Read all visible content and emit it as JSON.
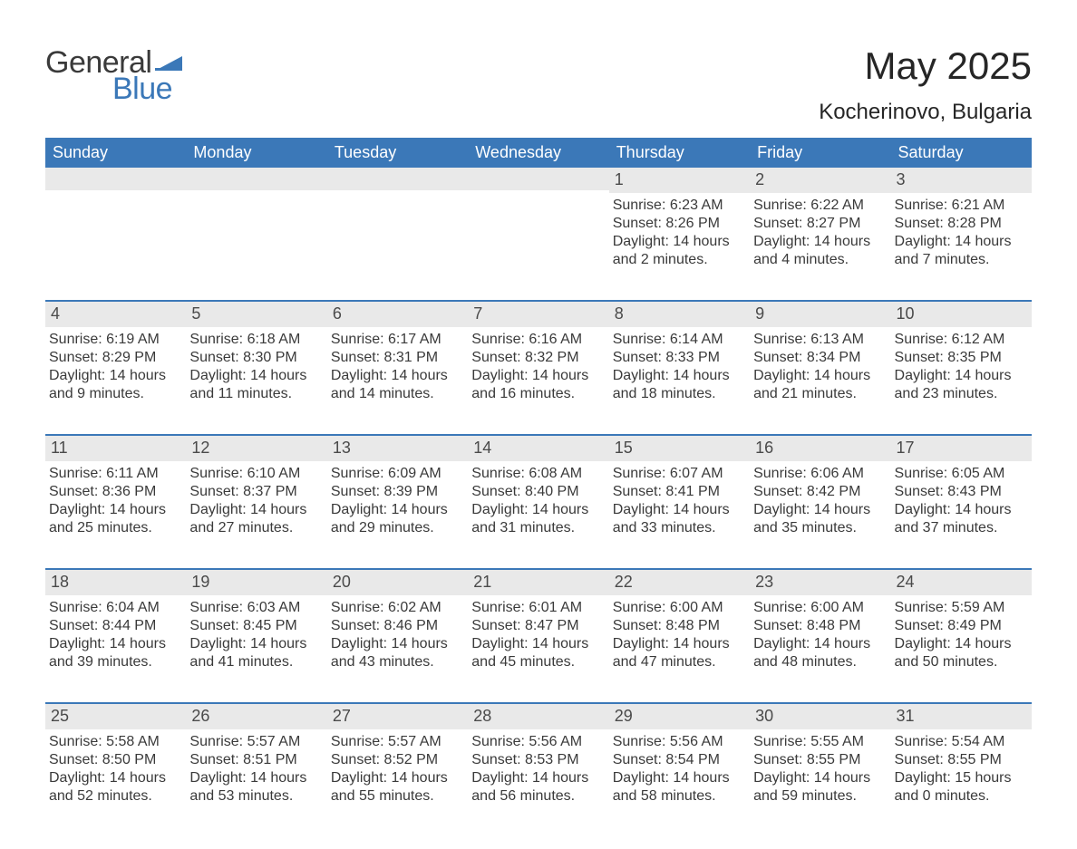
{
  "logo": {
    "text1": "General",
    "text2": "Blue",
    "triangle_color": "#3b78b8",
    "general_color": "#3a3a3a",
    "blue_color": "#3b78b8"
  },
  "header": {
    "month_title": "May 2025",
    "location": "Kocherinovo, Bulgaria"
  },
  "colors": {
    "header_bg": "#3b78b8",
    "header_text": "#ffffff",
    "daynum_bg": "#e9e9e9",
    "daynum_text": "#4a4a4a",
    "body_text": "#3a3a3a",
    "week_divider": "#3b78b8",
    "page_bg": "#ffffff"
  },
  "typography": {
    "month_title_fontsize": 42,
    "location_fontsize": 24,
    "day_header_fontsize": 18,
    "daynum_fontsize": 18,
    "cell_body_fontsize": 16,
    "font_family": "Arial"
  },
  "day_headers": [
    "Sunday",
    "Monday",
    "Tuesday",
    "Wednesday",
    "Thursday",
    "Friday",
    "Saturday"
  ],
  "weeks": [
    [
      {
        "blank": true
      },
      {
        "blank": true
      },
      {
        "blank": true
      },
      {
        "blank": true
      },
      {
        "day": "1",
        "sunrise": "6:23 AM",
        "sunset": "8:26 PM",
        "daylight": "14 hours and 2 minutes."
      },
      {
        "day": "2",
        "sunrise": "6:22 AM",
        "sunset": "8:27 PM",
        "daylight": "14 hours and 4 minutes."
      },
      {
        "day": "3",
        "sunrise": "6:21 AM",
        "sunset": "8:28 PM",
        "daylight": "14 hours and 7 minutes."
      }
    ],
    [
      {
        "day": "4",
        "sunrise": "6:19 AM",
        "sunset": "8:29 PM",
        "daylight": "14 hours and 9 minutes."
      },
      {
        "day": "5",
        "sunrise": "6:18 AM",
        "sunset": "8:30 PM",
        "daylight": "14 hours and 11 minutes."
      },
      {
        "day": "6",
        "sunrise": "6:17 AM",
        "sunset": "8:31 PM",
        "daylight": "14 hours and 14 minutes."
      },
      {
        "day": "7",
        "sunrise": "6:16 AM",
        "sunset": "8:32 PM",
        "daylight": "14 hours and 16 minutes."
      },
      {
        "day": "8",
        "sunrise": "6:14 AM",
        "sunset": "8:33 PM",
        "daylight": "14 hours and 18 minutes."
      },
      {
        "day": "9",
        "sunrise": "6:13 AM",
        "sunset": "8:34 PM",
        "daylight": "14 hours and 21 minutes."
      },
      {
        "day": "10",
        "sunrise": "6:12 AM",
        "sunset": "8:35 PM",
        "daylight": "14 hours and 23 minutes."
      }
    ],
    [
      {
        "day": "11",
        "sunrise": "6:11 AM",
        "sunset": "8:36 PM",
        "daylight": "14 hours and 25 minutes."
      },
      {
        "day": "12",
        "sunrise": "6:10 AM",
        "sunset": "8:37 PM",
        "daylight": "14 hours and 27 minutes."
      },
      {
        "day": "13",
        "sunrise": "6:09 AM",
        "sunset": "8:39 PM",
        "daylight": "14 hours and 29 minutes."
      },
      {
        "day": "14",
        "sunrise": "6:08 AM",
        "sunset": "8:40 PM",
        "daylight": "14 hours and 31 minutes."
      },
      {
        "day": "15",
        "sunrise": "6:07 AM",
        "sunset": "8:41 PM",
        "daylight": "14 hours and 33 minutes."
      },
      {
        "day": "16",
        "sunrise": "6:06 AM",
        "sunset": "8:42 PM",
        "daylight": "14 hours and 35 minutes."
      },
      {
        "day": "17",
        "sunrise": "6:05 AM",
        "sunset": "8:43 PM",
        "daylight": "14 hours and 37 minutes."
      }
    ],
    [
      {
        "day": "18",
        "sunrise": "6:04 AM",
        "sunset": "8:44 PM",
        "daylight": "14 hours and 39 minutes."
      },
      {
        "day": "19",
        "sunrise": "6:03 AM",
        "sunset": "8:45 PM",
        "daylight": "14 hours and 41 minutes."
      },
      {
        "day": "20",
        "sunrise": "6:02 AM",
        "sunset": "8:46 PM",
        "daylight": "14 hours and 43 minutes."
      },
      {
        "day": "21",
        "sunrise": "6:01 AM",
        "sunset": "8:47 PM",
        "daylight": "14 hours and 45 minutes."
      },
      {
        "day": "22",
        "sunrise": "6:00 AM",
        "sunset": "8:48 PM",
        "daylight": "14 hours and 47 minutes."
      },
      {
        "day": "23",
        "sunrise": "6:00 AM",
        "sunset": "8:48 PM",
        "daylight": "14 hours and 48 minutes."
      },
      {
        "day": "24",
        "sunrise": "5:59 AM",
        "sunset": "8:49 PM",
        "daylight": "14 hours and 50 minutes."
      }
    ],
    [
      {
        "day": "25",
        "sunrise": "5:58 AM",
        "sunset": "8:50 PM",
        "daylight": "14 hours and 52 minutes."
      },
      {
        "day": "26",
        "sunrise": "5:57 AM",
        "sunset": "8:51 PM",
        "daylight": "14 hours and 53 minutes."
      },
      {
        "day": "27",
        "sunrise": "5:57 AM",
        "sunset": "8:52 PM",
        "daylight": "14 hours and 55 minutes."
      },
      {
        "day": "28",
        "sunrise": "5:56 AM",
        "sunset": "8:53 PM",
        "daylight": "14 hours and 56 minutes."
      },
      {
        "day": "29",
        "sunrise": "5:56 AM",
        "sunset": "8:54 PM",
        "daylight": "14 hours and 58 minutes."
      },
      {
        "day": "30",
        "sunrise": "5:55 AM",
        "sunset": "8:55 PM",
        "daylight": "14 hours and 59 minutes."
      },
      {
        "day": "31",
        "sunrise": "5:54 AM",
        "sunset": "8:55 PM",
        "daylight": "15 hours and 0 minutes."
      }
    ]
  ],
  "labels": {
    "sunrise_prefix": "Sunrise: ",
    "sunset_prefix": "Sunset: ",
    "daylight_prefix": "Daylight: "
  }
}
